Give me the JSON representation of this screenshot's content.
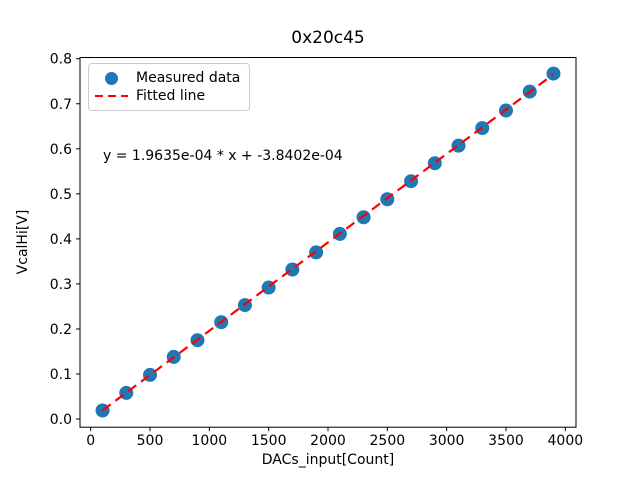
{
  "figure": {
    "background_color": "#ffffff",
    "text_color": "#000000",
    "spine_color": "#000000",
    "legend_border_color": "#cccccc"
  },
  "chart_data": {
    "type": "scatter",
    "title": "0x20c45",
    "xlabel": "DACs_input[Count]",
    "ylabel": "VcalHi[V]",
    "annotation": "y = 1.9635e-04 * x + -3.8402e-04",
    "grid": false,
    "legend_position": "upper left",
    "xlim": [
      -90,
      4090
    ],
    "ylim": [
      -0.0181,
      0.8027
    ],
    "xticks": [
      0,
      500,
      1000,
      1500,
      2000,
      2500,
      3000,
      3500,
      4000
    ],
    "xtick_labels": [
      "0",
      "500",
      "1000",
      "1500",
      "2000",
      "2500",
      "3000",
      "3500",
      "4000"
    ],
    "yticks": [
      0.0,
      0.1,
      0.2,
      0.3,
      0.4,
      0.5,
      0.6,
      0.7,
      0.8
    ],
    "ytick_labels": [
      "0.0",
      "0.1",
      "0.2",
      "0.3",
      "0.4",
      "0.5",
      "0.6",
      "0.7",
      "0.8"
    ],
    "x": [
      100,
      300,
      500,
      700,
      900,
      1100,
      1300,
      1500,
      1700,
      1900,
      2100,
      2300,
      2500,
      2700,
      2900,
      3100,
      3300,
      3500,
      3700,
      3900
    ],
    "series": [
      {
        "name": "Measured data",
        "type": "scatter",
        "color": "#1f77b4",
        "marker": "circle",
        "values": [
          0.019,
          0.058,
          0.098,
          0.138,
          0.175,
          0.215,
          0.253,
          0.292,
          0.332,
          0.37,
          0.411,
          0.448,
          0.488,
          0.528,
          0.568,
          0.607,
          0.646,
          0.685,
          0.727,
          0.767
        ]
      },
      {
        "name": "Fitted line",
        "type": "line",
        "style": "dashed",
        "color": "#ff0000",
        "slope": 0.00019635,
        "intercept": -0.00038402
      }
    ]
  }
}
